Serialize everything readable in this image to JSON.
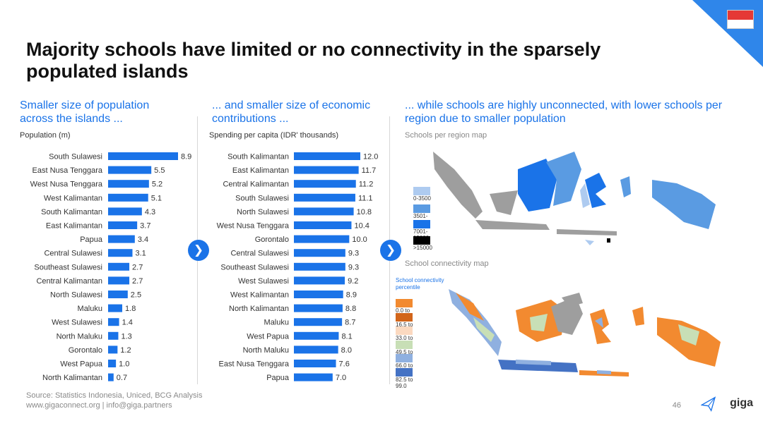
{
  "title": "Majority schools have limited or no connectivity in the sparsely populated islands",
  "colors": {
    "accent": "#1a73e8",
    "bar": "#1a73e8",
    "arrow": "#1a73e8"
  },
  "sections": {
    "population": {
      "heading": "Smaller size of population across the islands ...",
      "subheading": "Population (m)"
    },
    "spending": {
      "heading": "... and smaller size of economic contributions ...",
      "subheading": "Spending per capita (IDR' thousands)"
    },
    "maps": {
      "heading": "... while schools are highly unconnected, with lower schools per region due to smaller population"
    }
  },
  "arrow_icon": "chevron-right-icon",
  "chart_data": [
    {
      "type": "bar",
      "orientation": "horizontal",
      "title": "",
      "ylabel": "Population (m)",
      "categories": [
        "South Sulawesi",
        "East Nusa Tenggara",
        "West Nusa Tenggara",
        "West Kalimantan",
        "South Kalimantan",
        "East Kalimantan",
        "Papua",
        "Central Sulawesi",
        "Southeast Sulawesi",
        "Central Kalimantan",
        "North Sulawesi",
        "Maluku",
        "West Sulawesi",
        "North Maluku",
        "Gorontalo",
        "West Papua",
        "North Kalimantan"
      ],
      "values": [
        8.9,
        5.5,
        5.2,
        5.1,
        4.3,
        3.7,
        3.4,
        3.1,
        2.7,
        2.7,
        2.5,
        1.8,
        1.4,
        1.3,
        1.2,
        1.0,
        0.7
      ],
      "labels": [
        "8.9",
        "5.5",
        "5.2",
        "5.1",
        "4.3",
        "3.7",
        "3.4",
        "3.1",
        "2.7",
        "2.7",
        "2.5",
        "1.8",
        "1.4",
        "1.3",
        "1.2",
        "1.0",
        "0.7"
      ],
      "xlim": [
        0,
        8.9
      ]
    },
    {
      "type": "bar",
      "orientation": "horizontal",
      "title": "",
      "ylabel": "Spending per capita (IDR' thousands)",
      "categories": [
        "South Kalimantan",
        "East Kalimantan",
        "Central Kalimantan",
        "South Sulawesi",
        "North Sulawesi",
        "West Nusa Tenggara",
        "Gorontalo",
        "Central Sulawesi",
        "Southeast Sulawesi",
        "West Sulawesi",
        "West Kalimantan",
        "North Kalimantan",
        "Maluku",
        "West Papua",
        "North Maluku",
        "East Nusa Tenggara",
        "Papua"
      ],
      "values": [
        12.0,
        11.7,
        11.2,
        11.1,
        10.8,
        10.4,
        10.0,
        9.3,
        9.3,
        9.2,
        8.9,
        8.8,
        8.7,
        8.1,
        8.0,
        7.6,
        7.0
      ],
      "labels": [
        "12.0",
        "11.7",
        "11.2",
        "11.1",
        "10.8",
        "10.4",
        "10.0",
        "9.3",
        "9.3",
        "9.2",
        "8.9",
        "8.8",
        "8.7",
        "8.1",
        "8.0",
        "7.6",
        "7.0"
      ],
      "xlim": [
        0,
        12.0
      ]
    }
  ],
  "maps": {
    "schools_map": {
      "label": "Schools per region map",
      "legend": [
        {
          "label": "0-3500",
          "color": "#aecbf0"
        },
        {
          "label": "3501-7000",
          "color": "#5a9be2"
        },
        {
          "label": "7001-15000",
          "color": "#1a73e8"
        },
        {
          "label": ">15000",
          "color": "#000000"
        }
      ]
    },
    "connectivity_map": {
      "label": "School connectivity map",
      "legend_title": "School connectivity percentile",
      "legend": [
        {
          "label": "0.0 to 16.5",
          "color": "#f28a30"
        },
        {
          "label": "16.5 to 33.0",
          "color": "#d2651a"
        },
        {
          "label": "33.0 to 49.5",
          "color": "#fbd9c0"
        },
        {
          "label": "49.5 to 66.0",
          "color": "#c8dfb6"
        },
        {
          "label": "66.0 to 82.5",
          "color": "#8fb0e0"
        },
        {
          "label": "82.5 to 99.0",
          "color": "#4472c4"
        }
      ]
    }
  },
  "footer": {
    "source": "Source: Statistics Indonesia, Uniced, BCG Analysis",
    "contact": "www.gigaconnect.org  |  info@giga.partners",
    "page": "46",
    "brand": "giga"
  }
}
